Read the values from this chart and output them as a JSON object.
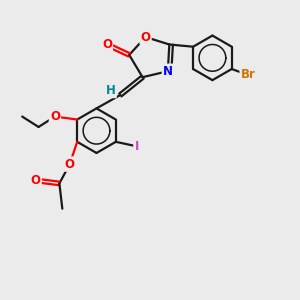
{
  "bg_color": "#ebebeb",
  "bond_color": "#1a1a1a",
  "bond_lw": 1.6,
  "figsize": [
    3.0,
    3.0
  ],
  "dpi": 100,
  "colors": {
    "O": "#ff0000",
    "N": "#0000ff",
    "Br": "#cc7700",
    "I": "#cc44cc",
    "H": "#008b8b",
    "C": "#1a1a1a"
  },
  "font_size": 8.5
}
